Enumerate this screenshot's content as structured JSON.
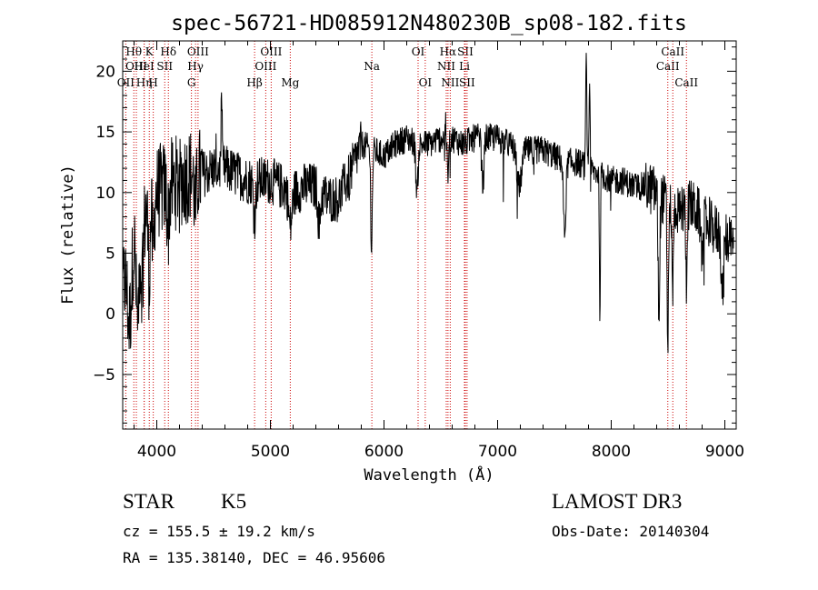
{
  "chart_data": {
    "type": "line",
    "title": "spec-56721-HD085912N480230B_sp08-182.fits",
    "xlabel": "Wavelength (Å)",
    "ylabel": "Flux (relative)",
    "xlim": [
      3700,
      9100
    ],
    "ylim": [
      -9.5,
      22.5
    ],
    "xticks": [
      4000,
      5000,
      6000,
      7000,
      8000,
      9000
    ],
    "yticks": [
      -5,
      0,
      5,
      10,
      15,
      20
    ],
    "xtick_labels": [
      "4000",
      "5000",
      "6000",
      "7000",
      "8000",
      "9000"
    ],
    "ytick_labels": [
      "−5",
      "0",
      "5",
      "10",
      "15",
      "20"
    ],
    "spectral_lines": [
      {
        "label": "OII",
        "x": 3727,
        "row": 2
      },
      {
        "label": "Hθ",
        "x": 3798,
        "row": 0
      },
      {
        "label": "OIII",
        "x": 3820,
        "row": 1
      },
      {
        "label": "Hη",
        "x": 3889,
        "row": 2
      },
      {
        "label": "HeI",
        "x": 3889,
        "row": 1
      },
      {
        "label": "K",
        "x": 3934,
        "row": 0
      },
      {
        "label": "H",
        "x": 3969,
        "row": 2
      },
      {
        "label": "SII",
        "x": 4070,
        "row": 1
      },
      {
        "label": "Hδ",
        "x": 4102,
        "row": 0
      },
      {
        "label": "G",
        "x": 4305,
        "row": 2
      },
      {
        "label": "OIII",
        "x": 4363,
        "row": 0
      },
      {
        "label": "Hγ",
        "x": 4341,
        "row": 1
      },
      {
        "label": "Hβ",
        "x": 4861,
        "row": 2
      },
      {
        "label": "OIII",
        "x": 4959,
        "row": 1
      },
      {
        "label": "OIII",
        "x": 5007,
        "row": 0
      },
      {
        "label": "Mg",
        "x": 5175,
        "row": 2
      },
      {
        "label": "Na",
        "x": 5893,
        "row": 1
      },
      {
        "label": "OI",
        "x": 6300,
        "row": 0
      },
      {
        "label": "OI",
        "x": 6363,
        "row": 2
      },
      {
        "label": "NII",
        "x": 6548,
        "row": 1
      },
      {
        "label": "Hα",
        "x": 6563,
        "row": 0
      },
      {
        "label": "NII",
        "x": 6583,
        "row": 2
      },
      {
        "label": "SII",
        "x": 6716,
        "row": 0
      },
      {
        "label": "Li",
        "x": 6708,
        "row": 1
      },
      {
        "label": "SII",
        "x": 6731,
        "row": 2
      },
      {
        "label": "CaII",
        "x": 8498,
        "row": 1
      },
      {
        "label": "CaII",
        "x": 8542,
        "row": 0
      },
      {
        "label": "CaII",
        "x": 8662,
        "row": 2
      }
    ],
    "spectrum_anchors": [
      [
        3700,
        2.0
      ],
      [
        3750,
        5.0
      ],
      [
        3800,
        6.5
      ],
      [
        3850,
        8.0
      ],
      [
        3900,
        8.5
      ],
      [
        3950,
        9.5
      ],
      [
        4000,
        10.0
      ],
      [
        4100,
        10.5
      ],
      [
        4200,
        11.0
      ],
      [
        4300,
        11.5
      ],
      [
        4400,
        11.5
      ],
      [
        4500,
        12.0
      ],
      [
        4600,
        12.0
      ],
      [
        4700,
        11.5
      ],
      [
        4800,
        11.0
      ],
      [
        4900,
        11.0
      ],
      [
        5000,
        11.0
      ],
      [
        5100,
        10.5
      ],
      [
        5200,
        10.0
      ],
      [
        5300,
        10.5
      ],
      [
        5400,
        10.5
      ],
      [
        5500,
        9.5
      ],
      [
        5600,
        9.5
      ],
      [
        5700,
        11.5
      ],
      [
        5800,
        14.0
      ],
      [
        5900,
        13.5
      ],
      [
        6000,
        13.0
      ],
      [
        6100,
        14.0
      ],
      [
        6200,
        14.5
      ],
      [
        6300,
        14.0
      ],
      [
        6400,
        14.0
      ],
      [
        6500,
        14.5
      ],
      [
        6600,
        14.5
      ],
      [
        6700,
        14.0
      ],
      [
        6800,
        14.5
      ],
      [
        6900,
        14.5
      ],
      [
        7000,
        14.5
      ],
      [
        7100,
        14.0
      ],
      [
        7200,
        13.5
      ],
      [
        7300,
        13.5
      ],
      [
        7400,
        13.5
      ],
      [
        7500,
        13.0
      ],
      [
        7600,
        12.5
      ],
      [
        7700,
        12.5
      ],
      [
        7800,
        12.0
      ],
      [
        7900,
        11.5
      ],
      [
        8000,
        11.0
      ],
      [
        8100,
        11.0
      ],
      [
        8200,
        10.5
      ],
      [
        8300,
        10.5
      ],
      [
        8400,
        10.0
      ],
      [
        8500,
        9.0
      ],
      [
        8600,
        8.5
      ],
      [
        8700,
        9.0
      ],
      [
        8800,
        8.0
      ],
      [
        8900,
        7.0
      ],
      [
        9000,
        6.5
      ],
      [
        9100,
        5.0
      ]
    ],
    "spectrum_features": [
      [
        3760,
        -6.0,
        25
      ],
      [
        3830,
        -8.0,
        18
      ],
      [
        3870,
        -5.0,
        18
      ],
      [
        3933,
        -6.0,
        12
      ],
      [
        3968,
        -5.0,
        12
      ],
      [
        4100,
        -3.0,
        14
      ],
      [
        4340,
        -3.0,
        14
      ],
      [
        4570,
        5.0,
        6
      ],
      [
        4860,
        -3.0,
        14
      ],
      [
        5175,
        -3.0,
        20
      ],
      [
        5430,
        -3.0,
        15
      ],
      [
        5890,
        -8.0,
        10
      ],
      [
        6290,
        -4.0,
        14
      ],
      [
        6563,
        -3.0,
        10
      ],
      [
        6870,
        -4.0,
        14
      ],
      [
        7190,
        -3.0,
        30
      ],
      [
        7590,
        -6.0,
        15
      ],
      [
        7780,
        10.0,
        6
      ],
      [
        7810,
        7.0,
        6
      ],
      [
        7900,
        -12.0,
        6
      ],
      [
        8420,
        -10.0,
        10
      ],
      [
        8498,
        -12.0,
        8
      ],
      [
        8542,
        -7.0,
        8
      ],
      [
        8662,
        -6.0,
        8
      ],
      [
        8800,
        -3.0,
        15
      ],
      [
        8980,
        -5.0,
        15
      ]
    ]
  },
  "info": {
    "object_class": "STAR",
    "subclass": "K5",
    "survey": "LAMOST DR3",
    "cz": "cz = 155.5 ± 19.2 km/s",
    "obs_date": "Obs-Date: 20140304",
    "coords": "RA = 135.38140, DEC =  46.95606"
  }
}
